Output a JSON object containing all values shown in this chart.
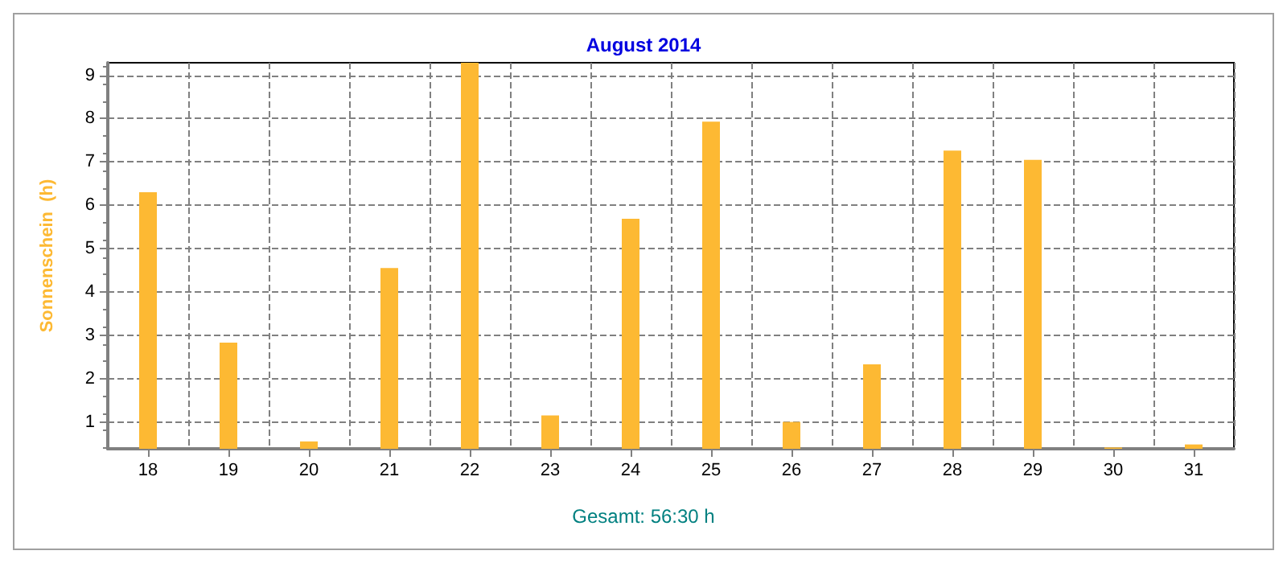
{
  "chart_data": {
    "type": "bar",
    "title": "August 2014",
    "ylabel": "Sonnenschein  (h)",
    "annotations": [
      "Gesamt: 56:30 h"
    ],
    "categories": [
      "18",
      "19",
      "20",
      "21",
      "22",
      "23",
      "24",
      "25",
      "26",
      "27",
      "28",
      "29",
      "30",
      "31"
    ],
    "series": [
      {
        "color": "#fdb933",
        "values": [
          6.3,
          2.83,
          0.55,
          4.55,
          9.29,
          1.15,
          5.69,
          7.93,
          1.0,
          2.33,
          7.26,
          7.05,
          0.41,
          0.48
        ]
      }
    ],
    "ylim": [
      0.38,
      9.29
    ],
    "yticks": [
      1,
      2,
      3,
      4,
      5,
      6,
      7,
      8,
      9
    ],
    "grid": true
  }
}
